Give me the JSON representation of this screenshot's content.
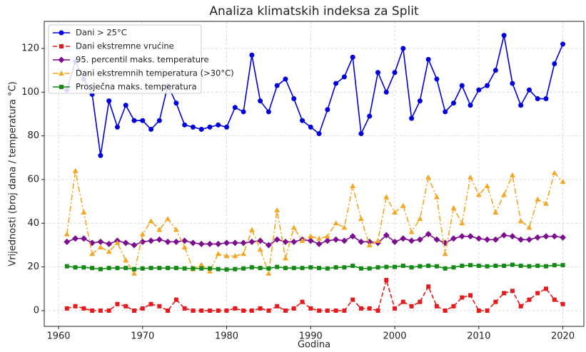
{
  "chart_data": {
    "type": "line",
    "title": "Analiza klimatskih indeksa za Split",
    "xlabel": "Godina",
    "ylabel": "Vrijednosti (broj dana / temperatura °C)",
    "x": [
      1961,
      1962,
      1963,
      1964,
      1965,
      1966,
      1967,
      1968,
      1969,
      1970,
      1971,
      1972,
      1973,
      1974,
      1975,
      1976,
      1977,
      1978,
      1979,
      1980,
      1981,
      1982,
      1983,
      1984,
      1985,
      1986,
      1987,
      1988,
      1989,
      1990,
      1991,
      1992,
      1993,
      1994,
      1995,
      1996,
      1997,
      1998,
      1999,
      2000,
      2001,
      2002,
      2003,
      2004,
      2005,
      2006,
      2007,
      2008,
      2009,
      2010,
      2011,
      2012,
      2013,
      2014,
      2015,
      2016,
      2017,
      2018,
      2019,
      2020
    ],
    "series": [
      {
        "name": "Dani > 25°C",
        "color": "#0000dd",
        "marker": "circle",
        "linestyle": "solid",
        "values": [
          101,
          114,
          106,
          99,
          71,
          96,
          84,
          94,
          87,
          87,
          83,
          87,
          103,
          95,
          85,
          84,
          83,
          84,
          85,
          84,
          93,
          91,
          117,
          96,
          91,
          103,
          106,
          97,
          87,
          84,
          81,
          92,
          104,
          107,
          116,
          81,
          89,
          109,
          100,
          109,
          120,
          88,
          96,
          115,
          106,
          91,
          95,
          103,
          94,
          101,
          103,
          110,
          126,
          104,
          94,
          101,
          97,
          97,
          113,
          122
        ]
      },
      {
        "name": "Dani ekstremne vrućine",
        "color": "#e41a1c",
        "marker": "square",
        "linestyle": "dashed",
        "values": [
          1,
          2,
          1,
          0,
          0,
          0,
          3,
          2,
          0,
          1,
          3,
          2,
          0,
          5,
          1,
          0,
          0,
          0,
          0,
          0,
          1,
          0,
          0,
          1,
          0,
          2,
          0,
          1,
          4,
          1,
          0,
          0,
          0,
          0,
          5,
          1,
          1,
          0,
          14,
          1,
          4,
          2,
          4,
          11,
          2,
          0,
          2,
          6,
          7,
          0,
          0,
          4,
          8,
          9,
          2,
          5,
          8,
          10,
          5,
          3
        ]
      },
      {
        "name": "95. percentil maks. temperature",
        "color": "#7b0d8e",
        "marker": "diamond",
        "linestyle": "solid",
        "values": [
          31.5,
          33,
          33,
          31,
          31.5,
          30.5,
          32,
          31,
          30,
          31.5,
          32,
          32.5,
          31.5,
          31.5,
          32,
          31,
          30.5,
          30.5,
          30.5,
          31,
          31,
          31,
          31.5,
          32,
          30,
          32.5,
          31.5,
          31.5,
          32.5,
          32,
          30.5,
          32,
          32.5,
          32,
          34,
          31.5,
          31.5,
          31,
          34.5,
          31.5,
          33,
          32,
          32.5,
          35,
          32.5,
          31,
          33,
          34,
          34,
          33,
          32.5,
          32.5,
          34.5,
          34,
          32.5,
          32.5,
          33.5,
          34,
          34,
          33.5
        ]
      },
      {
        "name": "Dani ekstremnih temperatura (>30°C)",
        "color": "#f5a623",
        "marker": "triangle",
        "linestyle": "dashdot",
        "values": [
          35,
          64,
          45,
          26,
          29,
          27,
          31,
          23,
          17,
          35,
          41,
          37,
          42,
          37,
          29,
          19,
          21,
          18,
          26,
          25,
          25,
          26,
          37,
          28,
          17,
          46,
          24,
          38,
          32,
          34,
          33,
          34,
          40,
          38,
          57,
          42,
          30,
          32,
          52,
          45,
          48,
          36,
          42,
          61,
          52,
          26,
          47,
          40,
          61,
          53,
          57,
          45,
          53,
          62,
          41,
          38,
          51,
          49,
          63,
          59
        ]
      },
      {
        "name": "Prosječna maks. temperatura",
        "color": "#138a13",
        "marker": "square",
        "linestyle": "solid",
        "values": [
          20.3,
          19.8,
          19.8,
          19.5,
          19,
          19.5,
          19.5,
          19.5,
          19,
          19.3,
          19.5,
          19.5,
          19.5,
          19.5,
          19.3,
          19.3,
          19.3,
          19.3,
          19,
          18.8,
          19,
          19.3,
          19.8,
          19.5,
          19.3,
          20,
          19.5,
          19.5,
          19.5,
          19.8,
          19.5,
          19.3,
          19.8,
          19.8,
          20.5,
          19.3,
          19.3,
          19.8,
          20,
          20,
          20.5,
          19.8,
          20.3,
          20.5,
          20.3,
          19.3,
          19.8,
          20.5,
          20.8,
          20.5,
          20.3,
          20.5,
          20.5,
          21,
          20.5,
          20.3,
          20.5,
          20.3,
          20.8,
          20.8
        ]
      }
    ],
    "xlim": [
      1958.3,
      2022.5
    ],
    "xticks": [
      1960,
      1970,
      1980,
      1990,
      2000,
      2010,
      2020
    ],
    "ylim": [
      -7.2,
      132.4
    ],
    "yticks": [
      0,
      20,
      40,
      60,
      80,
      100,
      120
    ],
    "grid": true,
    "legend": "upper left"
  }
}
